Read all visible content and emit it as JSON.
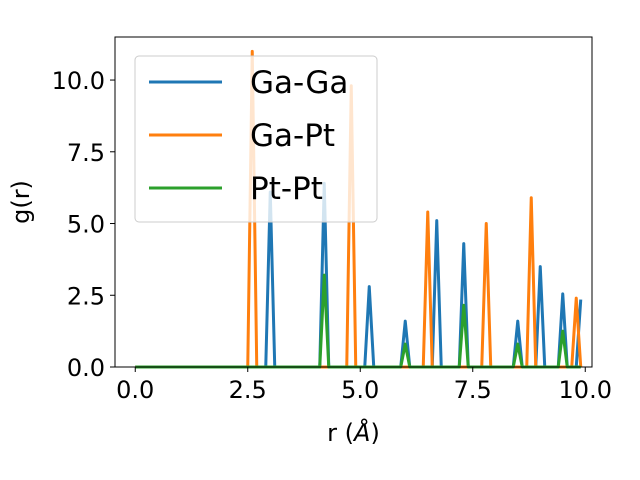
{
  "chart_data": {
    "type": "line",
    "xlabel": "r (",
    "xlabel_symbol": "Å",
    "xlabel_close": ")",
    "ylabel": "g(r)",
    "xlim": [
      -0.45,
      10.15
    ],
    "ylim": [
      0,
      11.5
    ],
    "x_ticks": [
      0.0,
      2.5,
      5.0,
      7.5,
      10.0
    ],
    "x_tick_labels": [
      "0.0",
      "2.5",
      "5.0",
      "7.5",
      "10.0"
    ],
    "y_ticks": [
      0.0,
      2.5,
      5.0,
      7.5,
      10.0
    ],
    "y_tick_labels": [
      "0.0",
      "2.5",
      "5.0",
      "7.5",
      "10.0"
    ],
    "grid": false,
    "legend_position": "top-left",
    "x_range": [
      0.0,
      9.9
    ],
    "series": [
      {
        "name": "Ga-Ga",
        "color": "#1f77b4",
        "peaks": [
          {
            "x": 3.0,
            "y": 6.1
          },
          {
            "x": 4.2,
            "y": 6.4
          },
          {
            "x": 5.2,
            "y": 2.8
          },
          {
            "x": 6.0,
            "y": 1.6
          },
          {
            "x": 6.7,
            "y": 5.1
          },
          {
            "x": 7.3,
            "y": 4.3
          },
          {
            "x": 8.5,
            "y": 1.6
          },
          {
            "x": 9.0,
            "y": 3.5
          },
          {
            "x": 9.5,
            "y": 2.55
          },
          {
            "x": 9.9,
            "y": 2.35
          }
        ]
      },
      {
        "name": "Ga-Pt",
        "color": "#ff7f0e",
        "peaks": [
          {
            "x": 2.6,
            "y": 11.0
          },
          {
            "x": 4.8,
            "y": 9.8
          },
          {
            "x": 6.5,
            "y": 5.4
          },
          {
            "x": 7.8,
            "y": 5.0
          },
          {
            "x": 8.8,
            "y": 5.9
          },
          {
            "x": 9.8,
            "y": 2.4
          }
        ]
      },
      {
        "name": "Pt-Pt",
        "color": "#2ca02c",
        "peaks": [
          {
            "x": 4.2,
            "y": 3.2
          },
          {
            "x": 6.0,
            "y": 0.8
          },
          {
            "x": 7.3,
            "y": 2.15
          },
          {
            "x": 8.5,
            "y": 0.8
          },
          {
            "x": 9.5,
            "y": 1.25
          }
        ]
      }
    ]
  }
}
